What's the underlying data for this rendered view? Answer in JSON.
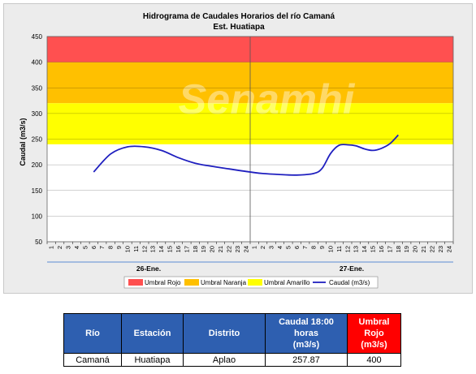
{
  "chart_data": {
    "type": "line",
    "title": "Hidrograma de Caudales Horarios del río Camaná",
    "subtitle": "Est. Huatiapa",
    "ylabel": "Caudal  (m3/s)",
    "xlabel": "",
    "ylim": [
      50,
      450
    ],
    "yticks": [
      50,
      100,
      150,
      200,
      250,
      300,
      350,
      400,
      450
    ],
    "xticks": [
      "1",
      "2",
      "3",
      "4",
      "5",
      "6",
      "7",
      "8",
      "9",
      "10",
      "11",
      "12",
      "13",
      "14",
      "15",
      "16",
      "17",
      "18",
      "19",
      "20",
      "21",
      "22",
      "23",
      "24",
      "1",
      "2",
      "3",
      "4",
      "5",
      "6",
      "7",
      "8",
      "9",
      "10",
      "11",
      "12",
      "13",
      "14",
      "15",
      "16",
      "17",
      "18",
      "19",
      "20",
      "21",
      "22",
      "23",
      "24"
    ],
    "day_groups": [
      "26-Ene.",
      "27-Ene."
    ],
    "bands": [
      {
        "name": "Umbral Rojo",
        "from": 400,
        "to": 450,
        "color": "#ff5050"
      },
      {
        "name": "Umbral Naranja",
        "from": 320,
        "to": 400,
        "color": "#ffc000"
      },
      {
        "name": "Umbral Amarillo",
        "from": 240,
        "to": 320,
        "color": "#ffff00"
      }
    ],
    "series": [
      {
        "name": "Caudal (m3/s)",
        "color": "#1f1fbf",
        "points": [
          [
            6,
            186
          ],
          [
            8,
            221
          ],
          [
            10,
            235
          ],
          [
            12,
            235
          ],
          [
            14,
            228
          ],
          [
            16,
            214
          ],
          [
            18,
            203
          ],
          [
            20,
            197
          ],
          [
            22,
            192
          ],
          [
            24,
            187
          ],
          [
            26,
            183
          ],
          [
            28,
            181
          ],
          [
            30,
            180
          ],
          [
            32,
            183
          ],
          [
            33,
            193
          ],
          [
            34,
            222
          ],
          [
            35,
            238
          ],
          [
            36,
            239
          ],
          [
            37,
            237
          ],
          [
            38,
            231
          ],
          [
            39,
            228
          ],
          [
            40,
            232
          ],
          [
            41,
            241
          ],
          [
            42,
            258
          ]
        ]
      }
    ],
    "watermark": "Senamhi",
    "legend_position": "bottom"
  },
  "table": {
    "headers": {
      "rio": "Río",
      "estacion": "Estación",
      "distrito": "Distrito",
      "caudal_l1": "Caudal 18:00",
      "caudal_l2": "horas",
      "caudal_l3": "(m3/s)",
      "umbral_l1": "Umbral",
      "umbral_l2": "Rojo",
      "umbral_l3": "(m3/s)"
    },
    "row": {
      "rio": "Camaná",
      "estacion": "Huatiapa",
      "distrito": "Aplao",
      "caudal": "257.87",
      "umbral": "400"
    }
  }
}
